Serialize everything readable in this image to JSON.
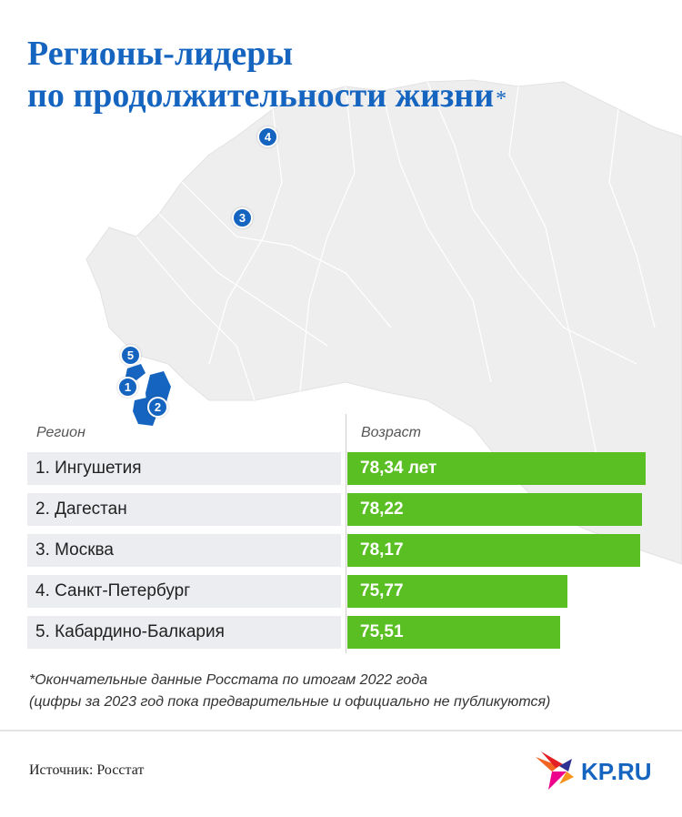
{
  "title": {
    "line1": "Регионы-лидеры",
    "line2": "по продолжительности жизни",
    "asterisk": "*"
  },
  "map": {
    "markers": [
      "1",
      "2",
      "3",
      "4",
      "5"
    ]
  },
  "table": {
    "col_region": "Регион",
    "col_age": "Возраст"
  },
  "chart_data": {
    "type": "bar",
    "categories": [
      "1. Ингушетия",
      "2. Дагестан",
      "3. Москва",
      "4. Санкт-Петербург",
      "5. Кабардино-Балкария"
    ],
    "values": [
      78.34,
      78.22,
      78.17,
      75.77,
      75.51
    ],
    "value_labels": [
      "78,34 лет",
      "78,22",
      "78,17",
      "75,77",
      "75,51"
    ],
    "xlabel": "Возраст",
    "ylabel": "Регион",
    "bar_color": "#5abf23"
  },
  "footnote": {
    "line1": "*Окончательные данные Росстата по итогам 2022 года",
    "line2": "(цифры за 2023 год пока предварительные и официально не публикуются)"
  },
  "source": "Источник: Росстат",
  "logo": {
    "text": "KP.RU",
    "color": "#1565c0"
  },
  "colors": {
    "title": "#1565c0",
    "marker": "#1565c0",
    "row_bg": "#ecedf0"
  }
}
